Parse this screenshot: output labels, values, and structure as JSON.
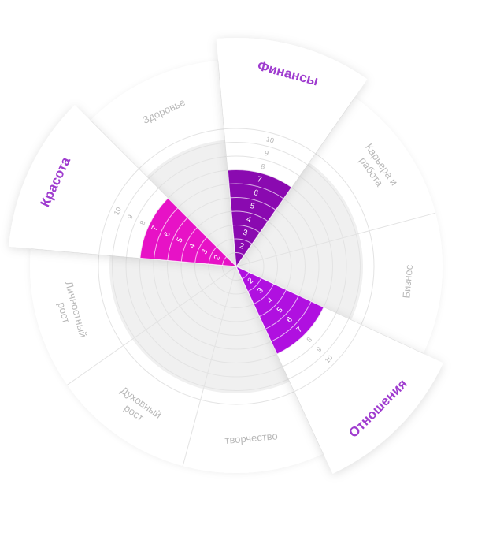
{
  "chart_data": {
    "type": "wheel",
    "scale_max": 10,
    "tick_labels": [
      "8",
      "9",
      "10"
    ],
    "sectors": [
      {
        "label": "Красота",
        "value": 7,
        "active": true
      },
      {
        "label": "Здоровье",
        "value": 0,
        "active": false
      },
      {
        "label": "Финансы",
        "value": 7,
        "active": true
      },
      {
        "label": "Карьера и работа",
        "value": 0,
        "active": false
      },
      {
        "label": "Бизнес",
        "value": 0,
        "active": false
      },
      {
        "label": "Отношения",
        "value": 7,
        "active": true
      },
      {
        "label": "творчество",
        "value": 0,
        "active": false
      },
      {
        "label": "Духовный рост",
        "value": 0,
        "active": false
      },
      {
        "label": "Личностный рост",
        "value": 0,
        "active": false
      }
    ],
    "colors": {
      "Красота": "#e712c6",
      "Финансы": "#8a0ab0",
      "Отношения": "#b010e0",
      "label_active": "#9f3ccf",
      "label_muted": "#b9b9b9",
      "center_fill": "#f0f0f0",
      "grid": "#e3e3e3"
    }
  }
}
